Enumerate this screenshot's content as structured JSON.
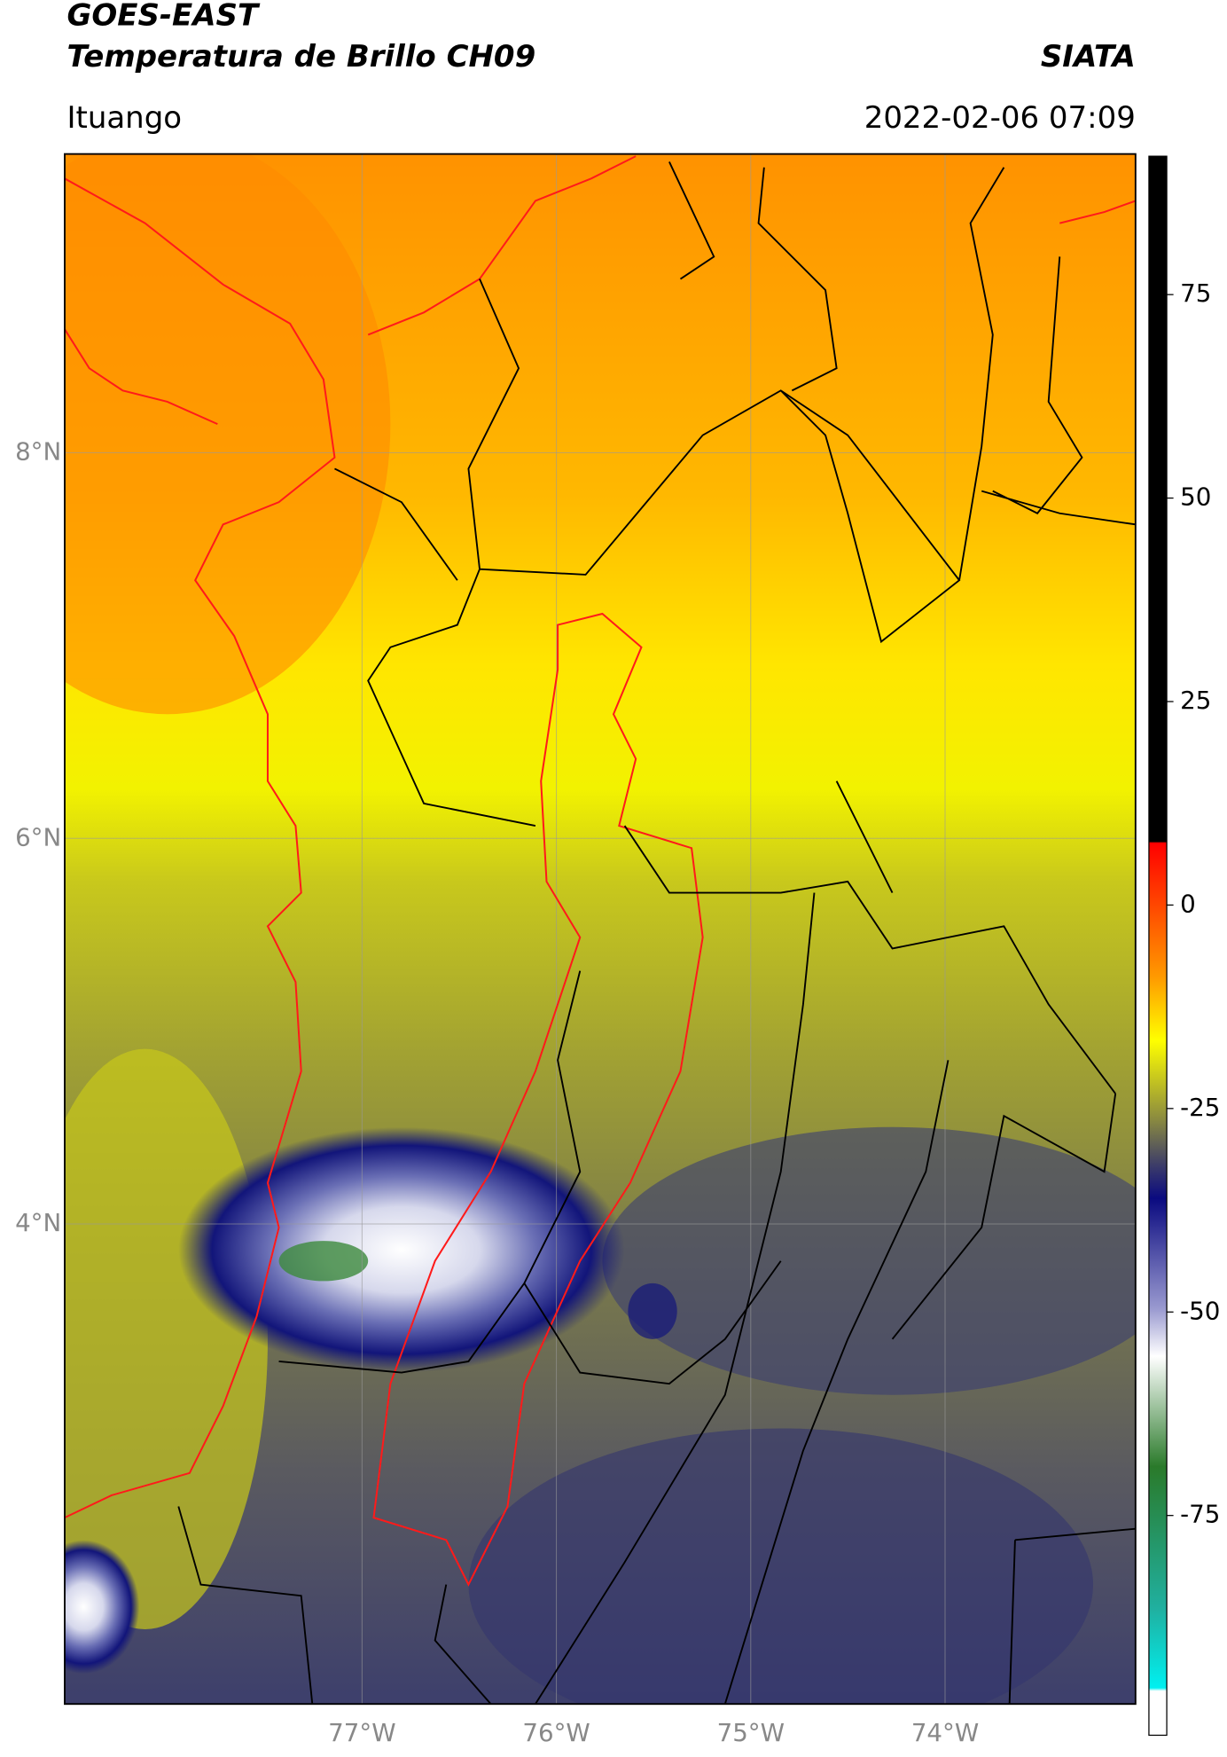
{
  "chart_data": {
    "type": "map",
    "title": "GOES-EAST",
    "subtitle": "Temperatura de Brillo CH09",
    "source": "SIATA",
    "region": "Ituango",
    "timestamp": "2022-02-06 07:09",
    "xlim": [
      -78.53,
      -73.02
    ],
    "ylim": [
      1.51,
      9.55
    ],
    "xticks": [
      {
        "value": -77,
        "label": "77°W"
      },
      {
        "value": -76,
        "label": "76°W"
      },
      {
        "value": -75,
        "label": "75°W"
      },
      {
        "value": -74,
        "label": "74°W"
      }
    ],
    "yticks": [
      {
        "value": 4,
        "label": "4°N"
      },
      {
        "value": 6,
        "label": "6°N"
      },
      {
        "value": 8,
        "label": "8°N"
      }
    ],
    "grid": true,
    "colorbar": {
      "lim": [
        -102,
        92
      ],
      "ticks": [
        -75,
        -50,
        -25,
        0,
        25,
        50,
        75
      ]
    }
  }
}
